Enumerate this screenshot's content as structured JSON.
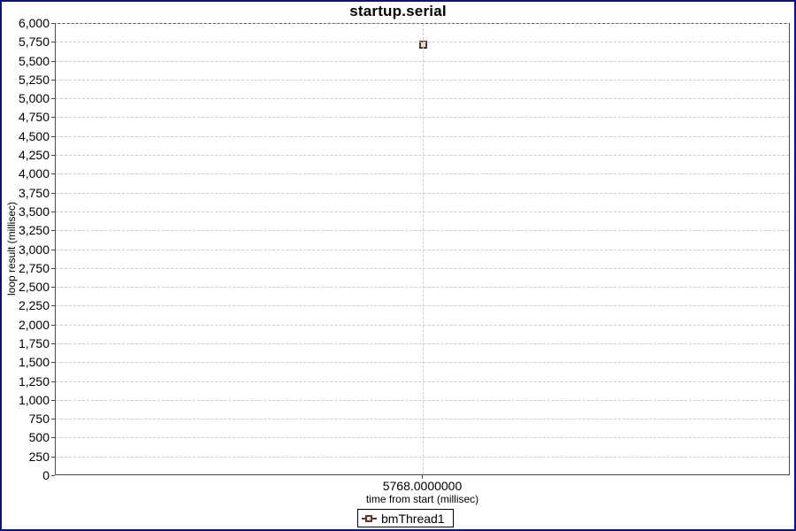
{
  "chart_data": {
    "type": "scatter",
    "title": "startup.serial",
    "xlabel": "time from start (millisec)",
    "ylabel": "loop result (millisec)",
    "ylim": [
      0,
      6000
    ],
    "y_tick_step": 250,
    "y_tick_format": "thousands-comma",
    "x_ticks": [
      {
        "value": 5768.0,
        "label": "5768.0000000"
      }
    ],
    "grid": true,
    "legend_position": "bottom",
    "series": [
      {
        "name": "bmThread1",
        "marker": "square",
        "points": [
          {
            "x": 5768.0,
            "y": 5718
          }
        ]
      }
    ]
  },
  "colors": {
    "series_outline": "#5f342e",
    "series_fill": "#d6ecda",
    "gridline": "#cbcbcb",
    "plot_border": "#4a4a4a",
    "window_border": "#10107e",
    "background": "#ffffff",
    "text": "#000000"
  }
}
